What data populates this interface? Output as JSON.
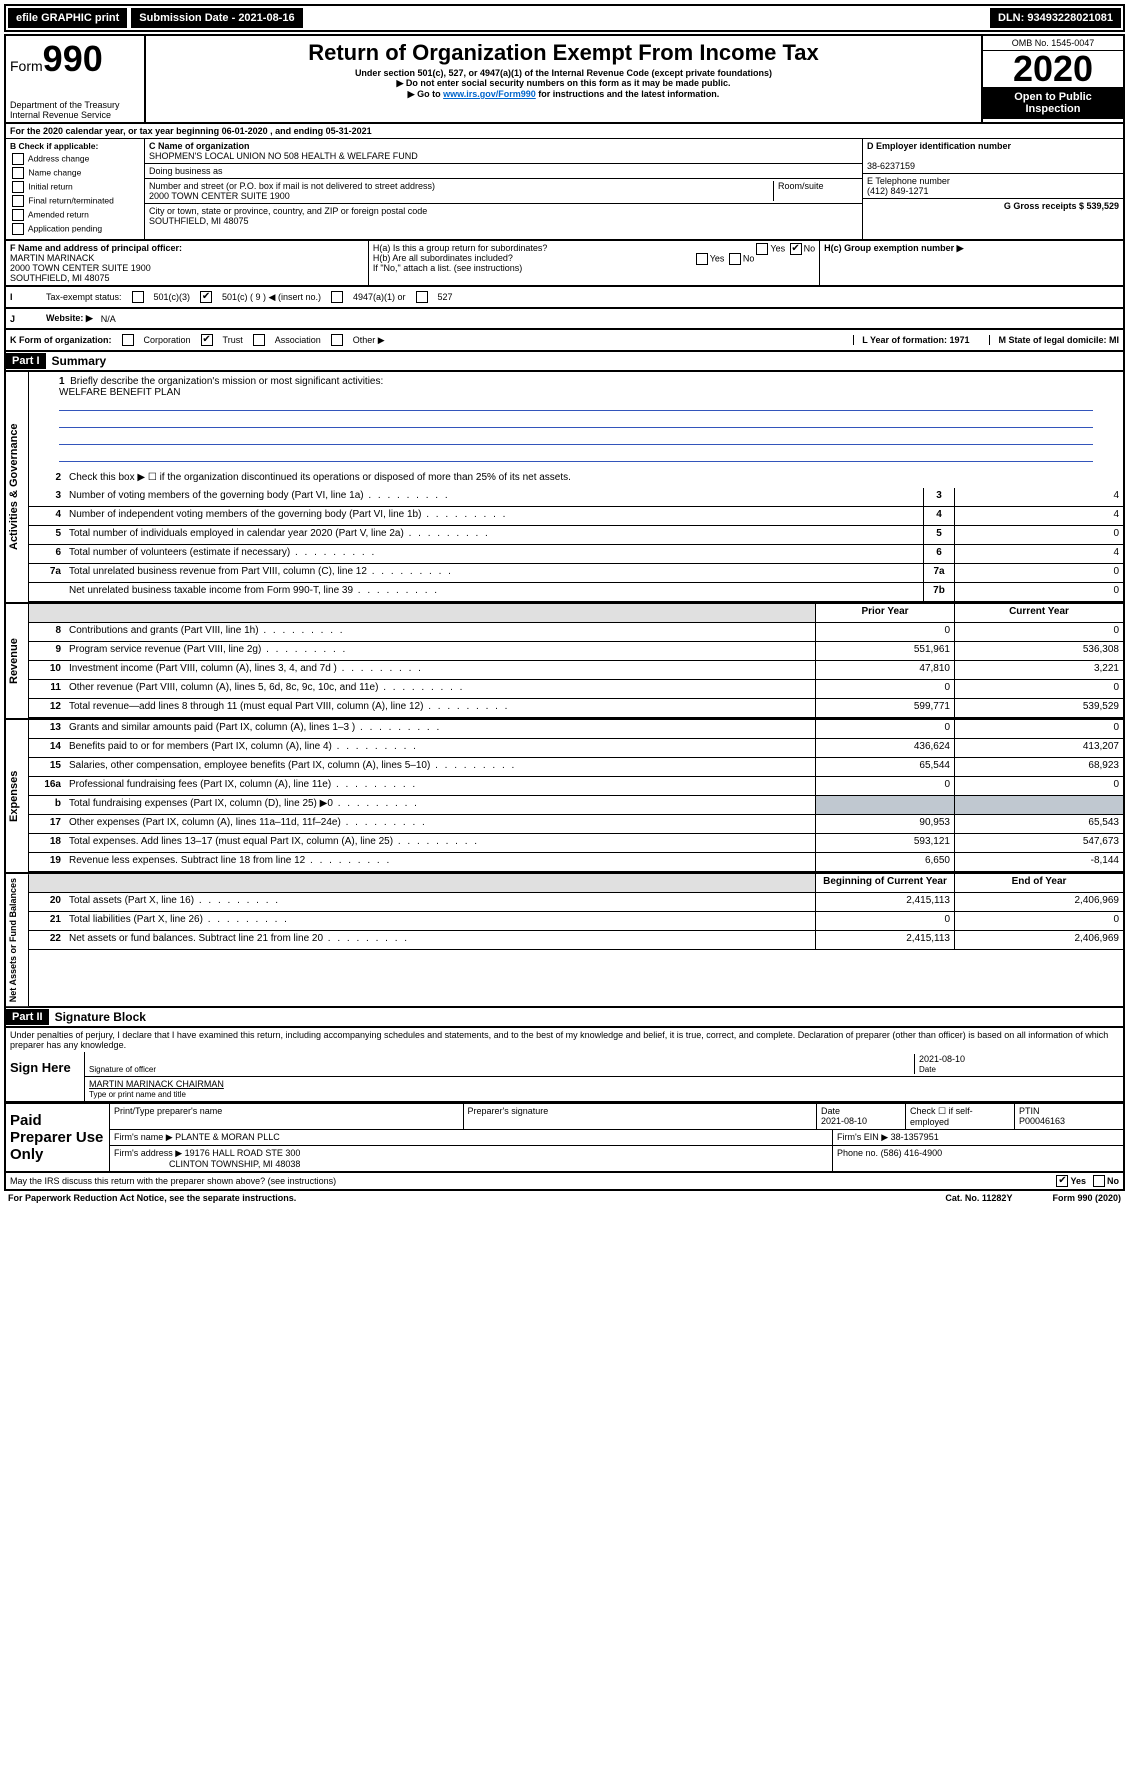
{
  "topbar": {
    "efile": "efile GRAPHIC print",
    "submission_label": "Submission Date - 2021-08-16",
    "dln": "DLN: 93493228021081"
  },
  "header": {
    "form_prefix": "Form",
    "form_number": "990",
    "dept1": "Department of the Treasury",
    "dept2": "Internal Revenue Service",
    "title": "Return of Organization Exempt From Income Tax",
    "sub1": "Under section 501(c), 527, or 4947(a)(1) of the Internal Revenue Code (except private foundations)",
    "sub2": "▶ Do not enter social security numbers on this form as it may be made public.",
    "sub3_pre": "▶ Go to ",
    "sub3_link": "www.irs.gov/Form990",
    "sub3_post": " for instructions and the latest information.",
    "omb": "OMB No. 1545-0047",
    "year": "2020",
    "open": "Open to Public Inspection"
  },
  "periodA": "For the 2020 calendar year, or tax year beginning 06-01-2020     , and ending 05-31-2021",
  "boxB": {
    "title": "B Check if applicable:",
    "items": [
      "Address change",
      "Name change",
      "Initial return",
      "Final return/terminated",
      "Amended return",
      "Application pending"
    ]
  },
  "boxC": {
    "name_label": "C Name of organization",
    "name": "SHOPMEN'S LOCAL UNION NO 508 HEALTH & WELFARE FUND",
    "dba_label": "Doing business as",
    "addr_label": "Number and street (or P.O. box if mail is not delivered to street address)",
    "room_label": "Room/suite",
    "addr": "2000 TOWN CENTER SUITE 1900",
    "city_label": "City or town, state or province, country, and ZIP or foreign postal code",
    "city": "SOUTHFIELD, MI  48075"
  },
  "boxD": {
    "label": "D Employer identification number",
    "value": "38-6237159"
  },
  "boxE": {
    "label": "E Telephone number",
    "value": "(412) 849-1271"
  },
  "boxG": {
    "label": "G Gross receipts $ 539,529"
  },
  "boxF": {
    "label": "F Name and address of principal officer:",
    "name": "MARTIN MARINACK",
    "addr1": "2000 TOWN CENTER SUITE 1900",
    "addr2": "SOUTHFIELD, MI  48075"
  },
  "boxH": {
    "ha": "H(a)  Is this a group return for subordinates?",
    "ha_yes": "Yes",
    "ha_no": "No",
    "hb": "H(b)  Are all subordinates included?",
    "hb_note": "If \"No,\" attach a list. (see instructions)",
    "hc": "H(c)  Group exemption number ▶"
  },
  "tax_status": {
    "label": "Tax-exempt status:",
    "c3": "501(c)(3)",
    "c_pre": "501(c) ( 9 ) ◀ (insert no.)",
    "a1": "4947(a)(1) or",
    "n527": "527"
  },
  "website": {
    "label": "Website: ▶",
    "value": "N/A"
  },
  "korg": {
    "label": "K Form of organization:",
    "corp": "Corporation",
    "trust": "Trust",
    "assoc": "Association",
    "other": "Other ▶",
    "L": "L Year of formation: 1971",
    "M": "M State of legal domicile: MI"
  },
  "part1": {
    "hdr": "Part I",
    "title": "Summary",
    "q1": "Briefly describe the organization's mission or most significant activities:",
    "mission": "WELFARE BENEFIT PLAN",
    "q2": "Check this box ▶ ☐  if the organization discontinued its operations or disposed of more than 25% of its net assets.",
    "rows_gov": [
      {
        "n": "3",
        "d": "Number of voting members of the governing body (Part VI, line 1a)",
        "box": "3",
        "v": "4"
      },
      {
        "n": "4",
        "d": "Number of independent voting members of the governing body (Part VI, line 1b)",
        "box": "4",
        "v": "4"
      },
      {
        "n": "5",
        "d": "Total number of individuals employed in calendar year 2020 (Part V, line 2a)",
        "box": "5",
        "v": "0"
      },
      {
        "n": "6",
        "d": "Total number of volunteers (estimate if necessary)",
        "box": "6",
        "v": "4"
      },
      {
        "n": "7a",
        "d": "Total unrelated business revenue from Part VIII, column (C), line 12",
        "box": "7a",
        "v": "0"
      },
      {
        "n": "",
        "d": "Net unrelated business taxable income from Form 990-T, line 39",
        "box": "7b",
        "v": "0"
      }
    ],
    "col_prior": "Prior Year",
    "col_current": "Current Year",
    "rows_rev": [
      {
        "n": "8",
        "d": "Contributions and grants (Part VIII, line 1h)",
        "p": "0",
        "c": "0"
      },
      {
        "n": "9",
        "d": "Program service revenue (Part VIII, line 2g)",
        "p": "551,961",
        "c": "536,308"
      },
      {
        "n": "10",
        "d": "Investment income (Part VIII, column (A), lines 3, 4, and 7d )",
        "p": "47,810",
        "c": "3,221"
      },
      {
        "n": "11",
        "d": "Other revenue (Part VIII, column (A), lines 5, 6d, 8c, 9c, 10c, and 11e)",
        "p": "0",
        "c": "0"
      },
      {
        "n": "12",
        "d": "Total revenue—add lines 8 through 11 (must equal Part VIII, column (A), line 12)",
        "p": "599,771",
        "c": "539,529"
      }
    ],
    "rows_exp": [
      {
        "n": "13",
        "d": "Grants and similar amounts paid (Part IX, column (A), lines 1–3 )",
        "p": "0",
        "c": "0"
      },
      {
        "n": "14",
        "d": "Benefits paid to or for members (Part IX, column (A), line 4)",
        "p": "436,624",
        "c": "413,207"
      },
      {
        "n": "15",
        "d": "Salaries, other compensation, employee benefits (Part IX, column (A), lines 5–10)",
        "p": "65,544",
        "c": "68,923"
      },
      {
        "n": "16a",
        "d": "Professional fundraising fees (Part IX, column (A), line 11e)",
        "p": "0",
        "c": "0"
      },
      {
        "n": "b",
        "d": "Total fundraising expenses (Part IX, column (D), line 25) ▶0",
        "p": "",
        "c": "",
        "grey": true
      },
      {
        "n": "17",
        "d": "Other expenses (Part IX, column (A), lines 11a–11d, 11f–24e)",
        "p": "90,953",
        "c": "65,543"
      },
      {
        "n": "18",
        "d": "Total expenses. Add lines 13–17 (must equal Part IX, column (A), line 25)",
        "p": "593,121",
        "c": "547,673"
      },
      {
        "n": "19",
        "d": "Revenue less expenses. Subtract line 18 from line 12",
        "p": "6,650",
        "c": "-8,144"
      }
    ],
    "col_begin": "Beginning of Current Year",
    "col_end": "End of Year",
    "rows_na": [
      {
        "n": "20",
        "d": "Total assets (Part X, line 16)",
        "p": "2,415,113",
        "c": "2,406,969"
      },
      {
        "n": "21",
        "d": "Total liabilities (Part X, line 26)",
        "p": "0",
        "c": "0"
      },
      {
        "n": "22",
        "d": "Net assets or fund balances. Subtract line 21 from line 20",
        "p": "2,415,113",
        "c": "2,406,969"
      }
    ],
    "side_gov": "Activities & Governance",
    "side_rev": "Revenue",
    "side_exp": "Expenses",
    "side_na": "Net Assets or Fund Balances"
  },
  "part2": {
    "hdr": "Part II",
    "title": "Signature Block",
    "decl": "Under penalties of perjury, I declare that I have examined this return, including accompanying schedules and statements, and to the best of my knowledge and belief, it is true, correct, and complete. Declaration of preparer (other than officer) is based on all information of which preparer has any knowledge.",
    "sign_here": "Sign Here",
    "sig_officer": "Signature of officer",
    "date_label": "Date",
    "date_val": "2021-08-10",
    "name_title": "MARTIN MARINACK CHAIRMAN",
    "name_title_label": "Type or print name and title"
  },
  "prep": {
    "label": "Paid Preparer Use Only",
    "h1": "Print/Type preparer's name",
    "h2": "Preparer's signature",
    "h3": "Date",
    "h3v": "2021-08-10",
    "h4": "Check ☐ if self-employed",
    "h5": "PTIN",
    "h5v": "P00046163",
    "firm_label": "Firm's name      ▶",
    "firm": "PLANTE & MORAN PLLC",
    "ein_label": "Firm's EIN ▶",
    "ein": "38-1357951",
    "addr_label": "Firm's address ▶",
    "addr1": "19176 HALL ROAD STE 300",
    "addr2": "CLINTON TOWNSHIP, MI  48038",
    "phone_label": "Phone no.",
    "phone": "(586) 416-4900"
  },
  "footer": {
    "discuss": "May the IRS discuss this return with the preparer shown above? (see instructions)",
    "yes": "Yes",
    "no": "No",
    "paperwork": "For Paperwork Reduction Act Notice, see the separate instructions.",
    "cat": "Cat. No. 11282Y",
    "form": "Form 990 (2020)"
  }
}
